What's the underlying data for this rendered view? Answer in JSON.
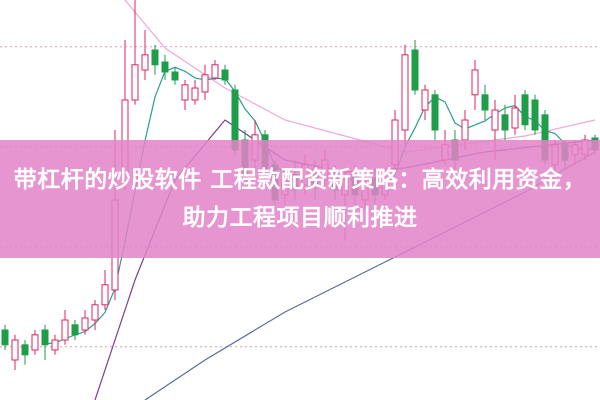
{
  "headline": "带杠杆的炒股软件 工程款配资新策略：高效利用资金，助力工程项目顺利推进",
  "colors": {
    "up": "#e0245e",
    "down": "#1f9e4a",
    "banner": "#e284c8",
    "ma_short": "#2a9d8f",
    "ma_mid": "#7b3f8c",
    "ma_long_pink": "#f0a8d8",
    "ma_long_blue": "#5a6d9a",
    "grid": "#c9a0c0"
  },
  "chart_data": {
    "type": "candlestick",
    "title": "",
    "xlabel": "",
    "ylabel": "",
    "ylim": [
      0,
      100
    ],
    "grid": true,
    "candles": [
      [
        17.5,
        18.8,
        12.5,
        13.8
      ],
      [
        10,
        16.3,
        7.5,
        15
      ],
      [
        13.8,
        15,
        8.8,
        11.3
      ],
      [
        12.5,
        17.5,
        11.3,
        16.3
      ],
      [
        17.5,
        18.8,
        10,
        13.8
      ],
      [
        12.5,
        16.3,
        11.3,
        15
      ],
      [
        15,
        22.5,
        13.8,
        20
      ],
      [
        18.8,
        20,
        15,
        16.3
      ],
      [
        17.5,
        22.5,
        16.3,
        20.5
      ],
      [
        20,
        25,
        17.5,
        23.8
      ],
      [
        23.8,
        32.5,
        22.5,
        28.8
      ],
      [
        27.5,
        67.5,
        25,
        50
      ],
      [
        55,
        90,
        52.5,
        75
      ],
      [
        75,
        100,
        73.8,
        83.8
      ],
      [
        82.5,
        92.5,
        80,
        86.3
      ],
      [
        87.5,
        88.8,
        81.3,
        83.8
      ],
      [
        84.5,
        86.3,
        80,
        82
      ],
      [
        82,
        83,
        78.8,
        80
      ],
      [
        75,
        80,
        72.5,
        78.8
      ],
      [
        75,
        80,
        73.8,
        78
      ],
      [
        77,
        83.8,
        75,
        81.3
      ],
      [
        80.5,
        85,
        80,
        83.8
      ],
      [
        82.5,
        83.8,
        78.8,
        80
      ],
      [
        77.5,
        78.8,
        61.3,
        62.5
      ],
      [
        65,
        67.5,
        53.8,
        56.3
      ],
      [
        60,
        70,
        57.5,
        66.3
      ],
      [
        66.3,
        67.5,
        55,
        57.5
      ],
      [
        58.8,
        60,
        48.8,
        50
      ],
      [
        51.3,
        56.3,
        48.8,
        55
      ],
      [
        56.3,
        60,
        50,
        52.5
      ],
      [
        53.8,
        61.3,
        51.3,
        58.8
      ],
      [
        57.5,
        60,
        50,
        53.8
      ],
      [
        55,
        62.5,
        52.5,
        60
      ],
      [
        56.3,
        58.8,
        50,
        52.5
      ],
      [
        51.3,
        57.5,
        40,
        55
      ],
      [
        56.3,
        58.8,
        48.8,
        51.3
      ],
      [
        50,
        56.3,
        47.5,
        53.8
      ],
      [
        55.5,
        57.5,
        48.8,
        51.3
      ],
      [
        51.3,
        56.3,
        50,
        55
      ],
      [
        58.8,
        72.5,
        57.5,
        70
      ],
      [
        67.5,
        88.8,
        63.8,
        86.3
      ],
      [
        87.5,
        90,
        76.3,
        77.5
      ],
      [
        72.5,
        78.8,
        70,
        77.5
      ],
      [
        76.3,
        77.5,
        65,
        67.5
      ],
      [
        60,
        67.5,
        58.8,
        63.8
      ],
      [
        65,
        67.5,
        57.5,
        60
      ],
      [
        65,
        72.5,
        62.5,
        70
      ],
      [
        76.3,
        85,
        72.5,
        82.5
      ],
      [
        76.3,
        78.8,
        70,
        72.5
      ],
      [
        67.5,
        75,
        60,
        72.5
      ],
      [
        71.3,
        73.8,
        65,
        67.5
      ],
      [
        68,
        76.3,
        66.3,
        73
      ],
      [
        76.3,
        77.5,
        67.5,
        68.8
      ],
      [
        75,
        76.3,
        66.3,
        67.5
      ],
      [
        71.3,
        72.5,
        58.8,
        60
      ],
      [
        58.8,
        65,
        56.3,
        63.8
      ],
      [
        63.8,
        65,
        57.5,
        60
      ],
      [
        61.3,
        65,
        58.8,
        63.8
      ],
      [
        61.3,
        66.3,
        60,
        65
      ],
      [
        65.5,
        66.3,
        61.3,
        62.5
      ]
    ],
    "moving_averages": [
      {
        "color_key": "ma_long_pink",
        "points": [
          [
            12,
            100
          ],
          [
            16,
            88
          ],
          [
            22,
            78
          ],
          [
            28,
            70
          ],
          [
            34,
            66
          ],
          [
            40,
            62
          ],
          [
            46,
            64
          ],
          [
            52,
            66
          ],
          [
            59,
            70
          ]
        ]
      },
      {
        "color_key": "ma_long_blue",
        "points": [
          [
            14,
            0
          ],
          [
            20,
            10
          ],
          [
            28,
            22
          ],
          [
            36,
            32
          ],
          [
            44,
            42
          ],
          [
            52,
            52
          ],
          [
            59,
            62
          ]
        ]
      },
      {
        "color_key": "ma_mid",
        "points": [
          [
            9,
            0
          ],
          [
            13,
            30
          ],
          [
            17,
            55
          ],
          [
            22,
            70
          ],
          [
            28,
            60
          ],
          [
            34,
            57
          ],
          [
            40,
            58
          ],
          [
            48,
            62
          ],
          [
            59,
            65
          ]
        ]
      }
    ],
    "grid_values": [
      88.3,
      63.3,
      38.3,
      13.3
    ]
  }
}
